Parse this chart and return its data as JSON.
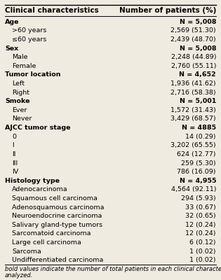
{
  "header_left": "Clinical characteristics",
  "header_right": "Number of patients (%)",
  "rows": [
    {
      "label": "Age",
      "value": "N = 5,008",
      "bold_left": true,
      "bold_right": true,
      "indent": false
    },
    {
      "label": ">60 years",
      "value": "2,569 (51.30)",
      "bold_left": false,
      "bold_right": false,
      "indent": true
    },
    {
      "label": "≤60 years",
      "value": "2,439 (48.70)",
      "bold_left": false,
      "bold_right": false,
      "indent": true
    },
    {
      "label": "Sex",
      "value": "N = 5,008",
      "bold_left": true,
      "bold_right": true,
      "indent": false
    },
    {
      "label": "Male",
      "value": "2,248 (44.89)",
      "bold_left": false,
      "bold_right": false,
      "indent": true
    },
    {
      "label": "Female",
      "value": "2,760 (55.11)",
      "bold_left": false,
      "bold_right": false,
      "indent": true
    },
    {
      "label": "Tumor location",
      "value": "N = 4,652",
      "bold_left": true,
      "bold_right": true,
      "indent": false
    },
    {
      "label": "Left",
      "value": "1,936 (41.62)",
      "bold_left": false,
      "bold_right": false,
      "indent": true
    },
    {
      "label": "Right",
      "value": "2,716 (58.38)",
      "bold_left": false,
      "bold_right": false,
      "indent": true
    },
    {
      "label": "Smoke",
      "value": "N = 5,001",
      "bold_left": true,
      "bold_right": true,
      "indent": false
    },
    {
      "label": "Ever",
      "value": "1,572 (31.43)",
      "bold_left": false,
      "bold_right": false,
      "indent": true
    },
    {
      "label": "Never",
      "value": "3,429 (68.57)",
      "bold_left": false,
      "bold_right": false,
      "indent": true
    },
    {
      "label": "AJCC tumor stage",
      "value": "N = 4885",
      "bold_left": true,
      "bold_right": true,
      "indent": false
    },
    {
      "label": "0",
      "value": "14 (0.29)",
      "bold_left": false,
      "bold_right": false,
      "indent": true
    },
    {
      "label": "I",
      "value": "3,202 (65.55)",
      "bold_left": false,
      "bold_right": false,
      "indent": true
    },
    {
      "label": "II",
      "value": "624 (12.77)",
      "bold_left": false,
      "bold_right": false,
      "indent": true
    },
    {
      "label": "III",
      "value": "259 (5.30)",
      "bold_left": false,
      "bold_right": false,
      "indent": true
    },
    {
      "label": "IV",
      "value": "786 (16.09)",
      "bold_left": false,
      "bold_right": false,
      "indent": true
    },
    {
      "label": "Histology type",
      "value": "N = 4,955",
      "bold_left": true,
      "bold_right": true,
      "indent": false
    },
    {
      "label": "Adenocarcinoma",
      "value": "4,564 (92.11)",
      "bold_left": false,
      "bold_right": false,
      "indent": true
    },
    {
      "label": "Squamous cell carcinoma",
      "value": "294 (5.93)",
      "bold_left": false,
      "bold_right": false,
      "indent": true
    },
    {
      "label": "Adenosquamous carcinoma",
      "value": "33 (0.67)",
      "bold_left": false,
      "bold_right": false,
      "indent": true
    },
    {
      "label": "Neuroendocrine carcinoma",
      "value": "32 (0.65)",
      "bold_left": false,
      "bold_right": false,
      "indent": true
    },
    {
      "label": "Salivary gland-type tumors",
      "value": "12 (0.24)",
      "bold_left": false,
      "bold_right": false,
      "indent": true
    },
    {
      "label": "Sarcomatoid carcinoma",
      "value": "12 (0.24)",
      "bold_left": false,
      "bold_right": false,
      "indent": true
    },
    {
      "label": "Large cell carcinoma",
      "value": "6 (0.12)",
      "bold_left": false,
      "bold_right": false,
      "indent": true
    },
    {
      "label": "Sarcoma",
      "value": "1 (0.02)",
      "bold_left": false,
      "bold_right": false,
      "indent": true
    },
    {
      "label": "Undifferentiated carcinoma",
      "value": "1 (0.02)",
      "bold_left": false,
      "bold_right": false,
      "indent": true
    }
  ],
  "footnote_line1": "bold values indicate the number of total patients in each clinical characters that were",
  "footnote_line2": "analyzed.",
  "bg_color": "#f0ebe0",
  "font_size": 6.8,
  "header_font_size": 7.5
}
